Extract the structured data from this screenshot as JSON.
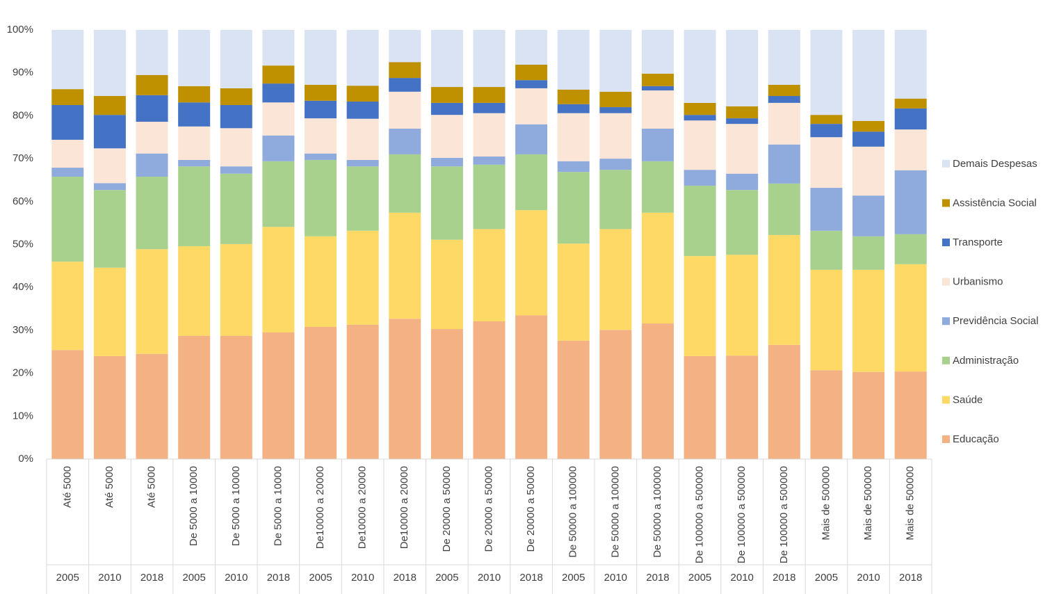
{
  "chart_data": {
    "type": "stacked-bar-100",
    "categories": [
      "Até 5000",
      "Até 5000",
      "Até 5000",
      "De 5000 a 10000",
      "De 5000 a 10000",
      "De 5000 a 10000",
      "De10000 a 20000",
      "De10000 a 20000",
      "De10000 a 20000",
      "De 20000 a 50000",
      "De 20000 a 50000",
      "De 20000 a 50000",
      "De 50000 a 100000",
      "De 50000 a 100000",
      "De 50000 a 100000",
      "De 100000 a 500000",
      "De 100000 a 500000",
      "De 100000 a 500000",
      "Mais de 500000",
      "Mais de 500000",
      "Mais de 500000"
    ],
    "years": [
      "2005",
      "2010",
      "2018",
      "2005",
      "2010",
      "2018",
      "2005",
      "2010",
      "2018",
      "2005",
      "2010",
      "2018",
      "2005",
      "2010",
      "2018",
      "2005",
      "2010",
      "2018",
      "2005",
      "2010",
      "2018"
    ],
    "series": [
      {
        "name": "Educação",
        "color": "#f4b183",
        "values": [
          25.4,
          24.0,
          24.5,
          28.7,
          28.7,
          29.5,
          30.8,
          31.3,
          32.7,
          30.3,
          32.1,
          33.5,
          27.6,
          30.1,
          31.6,
          24.0,
          24.1,
          26.6,
          20.7,
          20.3,
          20.4
        ]
      },
      {
        "name": "Saúde",
        "color": "#ffd966",
        "values": [
          20.6,
          20.6,
          24.4,
          20.9,
          21.4,
          24.6,
          21.1,
          21.9,
          24.7,
          20.8,
          21.5,
          24.5,
          22.6,
          23.5,
          25.8,
          23.3,
          23.5,
          25.6,
          23.4,
          23.8,
          25.0
        ]
      },
      {
        "name": "Administração",
        "color": "#a9d18e",
        "values": [
          19.8,
          18.1,
          16.9,
          18.6,
          16.4,
          15.3,
          17.8,
          15.0,
          13.6,
          17.1,
          15.0,
          13.0,
          16.7,
          13.8,
          12.0,
          16.4,
          15.1,
          12.0,
          9.1,
          7.8,
          7.0
        ]
      },
      {
        "name": "Previdência Social",
        "color": "#8faadc",
        "values": [
          2.1,
          1.6,
          5.4,
          1.5,
          1.7,
          6.0,
          1.5,
          1.5,
          6.0,
          2.0,
          1.9,
          7.0,
          2.5,
          2.6,
          7.6,
          3.7,
          3.8,
          9.1,
          10.0,
          9.5,
          14.9
        ]
      },
      {
        "name": "Urbanismo",
        "color": "#fbe5d6",
        "values": [
          6.5,
          8.1,
          7.4,
          7.8,
          8.9,
          7.7,
          8.2,
          9.6,
          8.6,
          10.0,
          10.1,
          8.4,
          11.2,
          10.6,
          8.9,
          11.5,
          11.6,
          9.7,
          11.8,
          11.4,
          9.5
        ]
      },
      {
        "name": "Transporte",
        "color": "#4472c4",
        "values": [
          8.1,
          7.8,
          6.2,
          5.6,
          5.4,
          4.4,
          4.1,
          4.0,
          3.2,
          2.8,
          2.4,
          1.9,
          2.1,
          1.4,
          1.0,
          1.3,
          1.3,
          1.6,
          3.1,
          3.5,
          4.9
        ]
      },
      {
        "name": "Assistência Social",
        "color": "#bf9000",
        "values": [
          3.7,
          4.4,
          4.7,
          3.8,
          3.9,
          4.2,
          3.7,
          3.7,
          3.7,
          3.7,
          3.7,
          3.6,
          3.4,
          3.6,
          2.9,
          2.8,
          2.8,
          2.6,
          2.1,
          2.5,
          2.3
        ]
      },
      {
        "name": "Demais Despesas",
        "color": "#dae3f3",
        "values": [
          13.8,
          15.4,
          10.5,
          13.1,
          13.6,
          8.3,
          12.8,
          13.0,
          7.5,
          13.3,
          13.3,
          8.1,
          13.9,
          14.4,
          10.2,
          17.0,
          17.8,
          12.8,
          19.8,
          21.2,
          16.0
        ]
      }
    ],
    "ylim": [
      0,
      100
    ],
    "yticks": [
      {
        "value": 0,
        "label": "0%"
      },
      {
        "value": 10,
        "label": "10%"
      },
      {
        "value": 20,
        "label": "20%"
      },
      {
        "value": 30,
        "label": "30%"
      },
      {
        "value": 40,
        "label": "40%"
      },
      {
        "value": 50,
        "label": "50%"
      },
      {
        "value": 60,
        "label": "60%"
      },
      {
        "value": 70,
        "label": "70%"
      },
      {
        "value": 80,
        "label": "80%"
      },
      {
        "value": 90,
        "label": "90%"
      },
      {
        "value": 100,
        "label": "100%"
      }
    ],
    "legend": "right"
  }
}
